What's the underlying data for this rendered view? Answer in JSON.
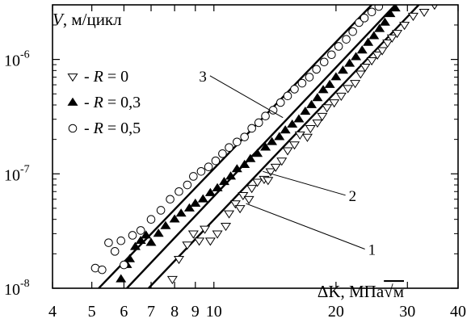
{
  "chart_data": {
    "type": "scatter",
    "x_scale": "log",
    "y_scale": "log",
    "xlim": [
      4,
      40
    ],
    "ylim": [
      1e-08,
      3e-06
    ],
    "grid": false,
    "legend_placement": "top-left",
    "ylabel_italic": "V",
    "ylabel_rest": ", м/цикл",
    "xlabel_main": "ΔK, МПа",
    "xlabel_root": "√м",
    "x_ticks": [
      {
        "value": 4,
        "label": "4"
      },
      {
        "value": 5,
        "label": "5"
      },
      {
        "value": 6,
        "label": "6"
      },
      {
        "value": 7,
        "label": "7"
      },
      {
        "value": 8,
        "label": "8"
      },
      {
        "value": 9,
        "label": "9"
      },
      {
        "value": 10,
        "label": "10"
      },
      {
        "value": 20,
        "label": "20"
      },
      {
        "value": 30,
        "label": "30"
      },
      {
        "value": 40,
        "label": "40"
      }
    ],
    "y_ticks": [
      {
        "value": 1e-08,
        "base": "10",
        "exp": "-8"
      },
      {
        "value": 1e-07,
        "base": "10",
        "exp": "-7"
      },
      {
        "value": 1e-06,
        "base": "10",
        "exp": "-6"
      }
    ],
    "series": [
      {
        "marker": "triangle-down-open",
        "legend_prefix": "- ",
        "legend_italic": "R",
        "legend_value": " = 0",
        "points": [
          [
            7.9,
            1.2e-08
          ],
          [
            8.2,
            1.8e-08
          ],
          [
            8.6,
            2.4e-08
          ],
          [
            8.9,
            3e-08
          ],
          [
            9.2,
            2.6e-08
          ],
          [
            9.5,
            3.3e-08
          ],
          [
            9.8,
            2.6e-08
          ],
          [
            10.2,
            3e-08
          ],
          [
            10.7,
            3.5e-08
          ],
          [
            10.9,
            4.5e-08
          ],
          [
            11.3,
            5.5e-08
          ],
          [
            11.6,
            5e-08
          ],
          [
            11.8,
            6.5e-08
          ],
          [
            12.2,
            6e-08
          ],
          [
            12.4,
            7.5e-08
          ],
          [
            12.8,
            8.5e-08
          ],
          [
            13.3,
            9e-08
          ],
          [
            13.6,
            8.8e-08
          ],
          [
            13.8,
            1.05e-07
          ],
          [
            14.2,
            1.15e-07
          ],
          [
            14.7,
            1.3e-07
          ],
          [
            15.2,
            1.6e-07
          ],
          [
            15.8,
            1.8e-07
          ],
          [
            16.3,
            2.2e-07
          ],
          [
            17.0,
            2.1e-07
          ],
          [
            17.3,
            2.5e-07
          ],
          [
            18.0,
            2.8e-07
          ],
          [
            18.5,
            3.2e-07
          ],
          [
            19.0,
            3.8e-07
          ],
          [
            19.8,
            4.2e-07
          ],
          [
            20.6,
            4.8e-07
          ],
          [
            21.4,
            5.6e-07
          ],
          [
            22.3,
            6.2e-07
          ],
          [
            23.0,
            7.5e-07
          ],
          [
            23.6,
            8.6e-07
          ],
          [
            24.5,
            9.8e-07
          ],
          [
            25.3,
            1.1e-06
          ],
          [
            26.0,
            1.2e-06
          ],
          [
            26.8,
            1.4e-06
          ],
          [
            27.5,
            1.55e-06
          ],
          [
            28.3,
            1.7e-06
          ],
          [
            29.5,
            2e-06
          ],
          [
            31.0,
            2.4e-06
          ],
          [
            33.0,
            2.6e-06
          ],
          [
            35.0,
            3e-06
          ]
        ]
      },
      {
        "marker": "triangle-up-filled",
        "legend_prefix": "- ",
        "legend_italic": "R",
        "legend_value": " = 0,3",
        "points": [
          [
            5.9,
            1.2e-08
          ],
          [
            6.1,
            1.6e-08
          ],
          [
            6.2,
            1.8e-08
          ],
          [
            6.4,
            2.3e-08
          ],
          [
            6.6,
            2.6e-08
          ],
          [
            6.8,
            2.9e-08
          ],
          [
            7.0,
            2.5e-08
          ],
          [
            7.3,
            3e-08
          ],
          [
            7.6,
            3.5e-08
          ],
          [
            8.0,
            4e-08
          ],
          [
            8.3,
            4.5e-08
          ],
          [
            8.7,
            5e-08
          ],
          [
            9.0,
            5.5e-08
          ],
          [
            9.4,
            6e-08
          ],
          [
            9.8,
            6.8e-08
          ],
          [
            10.2,
            7.5e-08
          ],
          [
            10.6,
            8.5e-08
          ],
          [
            11.0,
            9.5e-08
          ],
          [
            11.4,
            1.1e-07
          ],
          [
            11.9,
            1.2e-07
          ],
          [
            12.3,
            1.35e-07
          ],
          [
            12.8,
            1.5e-07
          ],
          [
            13.4,
            1.7e-07
          ],
          [
            13.9,
            1.9e-07
          ],
          [
            14.5,
            2.1e-07
          ],
          [
            15.0,
            2.4e-07
          ],
          [
            15.6,
            2.7e-07
          ],
          [
            16.2,
            3e-07
          ],
          [
            16.8,
            3.5e-07
          ],
          [
            17.4,
            4e-07
          ],
          [
            18.0,
            4.6e-07
          ],
          [
            18.6,
            5.4e-07
          ],
          [
            19.3,
            6e-07
          ],
          [
            20.0,
            7e-07
          ],
          [
            20.8,
            8e-07
          ],
          [
            21.6,
            9.2e-07
          ],
          [
            22.4,
            1.05e-06
          ],
          [
            23.2,
            1.2e-06
          ],
          [
            24.0,
            1.4e-06
          ],
          [
            24.8,
            1.6e-06
          ],
          [
            25.6,
            1.85e-06
          ],
          [
            26.4,
            2.1e-06
          ],
          [
            27.2,
            2.5e-06
          ],
          [
            28.0,
            2.8e-06
          ]
        ]
      },
      {
        "marker": "circle-open",
        "legend_prefix": "- ",
        "legend_italic": "R",
        "legend_value": " = 0,5",
        "points": [
          [
            5.1,
            1.5e-08
          ],
          [
            5.3,
            1.45e-08
          ],
          [
            5.5,
            2.5e-08
          ],
          [
            5.7,
            2.1e-08
          ],
          [
            5.9,
            2.6e-08
          ],
          [
            6.0,
            1.6e-08
          ],
          [
            6.3,
            2.9e-08
          ],
          [
            6.6,
            3.2e-08
          ],
          [
            7.0,
            4e-08
          ],
          [
            7.4,
            4.8e-08
          ],
          [
            7.8,
            6e-08
          ],
          [
            8.2,
            7e-08
          ],
          [
            8.6,
            8e-08
          ],
          [
            8.9,
            9.5e-08
          ],
          [
            9.3,
            1.05e-07
          ],
          [
            9.7,
            1.15e-07
          ],
          [
            10.1,
            1.3e-07
          ],
          [
            10.5,
            1.5e-07
          ],
          [
            10.9,
            1.7e-07
          ],
          [
            11.4,
            1.9e-07
          ],
          [
            11.9,
            2.1e-07
          ],
          [
            12.4,
            2.5e-07
          ],
          [
            12.9,
            2.8e-07
          ],
          [
            13.4,
            3.2e-07
          ],
          [
            14.0,
            3.6e-07
          ],
          [
            14.6,
            4.2e-07
          ],
          [
            15.2,
            4.8e-07
          ],
          [
            15.8,
            5.5e-07
          ],
          [
            16.5,
            6.2e-07
          ],
          [
            17.2,
            7e-07
          ],
          [
            17.9,
            8.2e-07
          ],
          [
            18.7,
            9.5e-07
          ],
          [
            19.5,
            1.1e-06
          ],
          [
            20.3,
            1.3e-06
          ],
          [
            21.2,
            1.5e-06
          ],
          [
            22.0,
            1.75e-06
          ],
          [
            22.8,
            2.1e-06
          ],
          [
            23.5,
            2.3e-06
          ],
          [
            24.5,
            2.6e-06
          ],
          [
            25.5,
            2.9e-06
          ]
        ]
      }
    ],
    "fit_lines": [
      {
        "label": "1",
        "x0": 6.9,
        "y0": 1e-08,
        "x1": 32.0,
        "y1": 3e-06
      },
      {
        "label": "2",
        "x0": 6.1,
        "y0": 1e-08,
        "x1": 28.0,
        "y1": 3e-06
      },
      {
        "label": "3",
        "x0": 5.2,
        "y0": 1e-08,
        "x1": 24.5,
        "y1": 3e-06
      }
    ],
    "callouts": [
      {
        "label": "1",
        "target_x": 12.0,
        "target_y": 5.5e-08,
        "text_x": 24.0,
        "text_y": 2.2e-08
      },
      {
        "label": "2",
        "target_x": 13.2,
        "target_y": 1.05e-07,
        "text_x": 21.5,
        "text_y": 6.5e-08
      },
      {
        "label": "3",
        "target_x": 14.8,
        "target_y": 3.1e-07,
        "text_x": 9.6,
        "text_y": 7.2e-07
      }
    ]
  }
}
